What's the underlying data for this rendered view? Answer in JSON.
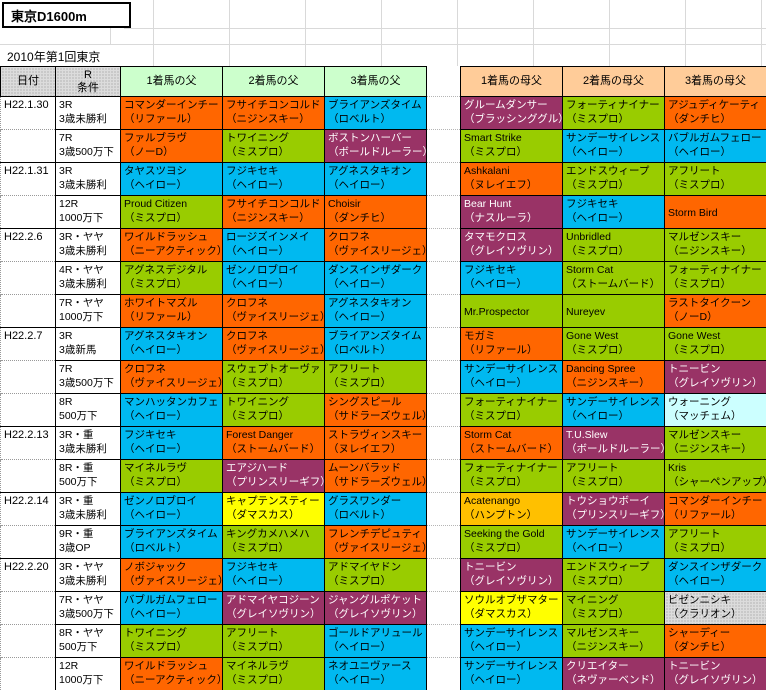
{
  "title": "東京D1600m",
  "subtitle": "2010年第1回東京",
  "columns": {
    "date": "日付",
    "cond_line1": "R",
    "cond_line2": "条件",
    "sire1": "1着馬の父",
    "sire2": "2着馬の父",
    "sire3": "3着馬の父",
    "damsire1": "1着馬の母父",
    "damsire2": "2着馬の母父",
    "damsire3": "3着馬の母父"
  },
  "palette": {
    "orange": "#FF6600",
    "cyan": "#00B9F0",
    "green": "#99CC00",
    "purple": "#993366",
    "yellow": "#FFFF00",
    "amber": "#FFC000",
    "paleblue": "#CCFFFF",
    "gray_pattern": "#DCDCDC",
    "header_green": "#CCFFCC",
    "header_peach": "#FFCC99"
  },
  "rows": [
    {
      "date": "H22.1.30",
      "cond1": "3R",
      "cond2": "3歳未勝利",
      "cells": {
        "f1": {
          "name": "コマンダーインチー",
          "line": "（リファール）",
          "color": "orange"
        },
        "f2": {
          "name": "フサイチコンコルド",
          "line": "（ニジンスキー）",
          "color": "orange"
        },
        "f3": {
          "name": "ブライアンズタイム",
          "line": "（ロベルト）",
          "color": "cyan"
        },
        "m1": {
          "name": "グルームダンサー",
          "line": "（ブラッシンググル）",
          "color": "purple"
        },
        "m2": {
          "name": "フォーティナイナー",
          "line": "（ミスプロ）",
          "color": "green"
        },
        "m3": {
          "name": "アジュディケーティ",
          "line": "（ダンチヒ）",
          "color": "orange"
        }
      }
    },
    {
      "date": "",
      "cond1": "7R",
      "cond2": "3歳500万下",
      "cells": {
        "f1": {
          "name": "ファルブラヴ",
          "line": "（ノーD）",
          "color": "orange"
        },
        "f2": {
          "name": "トワイニング",
          "line": "（ミスプロ）",
          "color": "green"
        },
        "f3": {
          "name": "ボストンハーバー",
          "line": "（ボールドルーラー）",
          "color": "purple"
        },
        "m1": {
          "name": "Smart Strike",
          "line": "（ミスプロ）",
          "color": "green"
        },
        "m2": {
          "name": "サンデーサイレンス",
          "line": "（ヘイロー）",
          "color": "cyan"
        },
        "m3": {
          "name": "バブルガムフェロー",
          "line": "（ヘイロー）",
          "color": "cyan"
        }
      }
    },
    {
      "date": "H22.1.31",
      "cond1": "3R",
      "cond2": "3歳未勝利",
      "cells": {
        "f1": {
          "name": "タヤスツヨシ",
          "line": "（ヘイロー）",
          "color": "cyan"
        },
        "f2": {
          "name": "フジキセキ",
          "line": "（ヘイロー）",
          "color": "cyan"
        },
        "f3": {
          "name": "アグネスタキオン",
          "line": "（ヘイロー）",
          "color": "cyan"
        },
        "m1": {
          "name": "Ashkalani",
          "line": "（ヌレイエフ）",
          "color": "orange"
        },
        "m2": {
          "name": "エンドスウィープ",
          "line": "（ミスプロ）",
          "color": "green"
        },
        "m3": {
          "name": "アフリート",
          "line": "（ミスプロ）",
          "color": "green"
        }
      }
    },
    {
      "date": "",
      "cond1": "12R",
      "cond2": "1000万下",
      "cells": {
        "f1": {
          "name": "Proud Citizen",
          "line": "（ミスプロ）",
          "color": "green"
        },
        "f2": {
          "name": "フサイチコンコルド",
          "line": "（ニジンスキー）",
          "color": "orange"
        },
        "f3": {
          "name": "Choisir",
          "line": "（ダンチヒ）",
          "color": "orange"
        },
        "m1": {
          "name": "Bear Hunt",
          "line": "（ナスルーラ）",
          "color": "purple"
        },
        "m2": {
          "name": "フジキセキ",
          "line": "（ヘイロー）",
          "color": "cyan"
        },
        "m3": {
          "name": "Storm Bird",
          "line": "",
          "color": "orange"
        }
      }
    },
    {
      "date": "H22.2.6",
      "cond1": "3R・ヤヤ",
      "cond2": "3歳未勝利",
      "cells": {
        "f1": {
          "name": "ワイルドラッシュ",
          "line": "（ニーアクティック）",
          "color": "orange"
        },
        "f2": {
          "name": "ロージズインメイ",
          "line": "（ヘイロー）",
          "color": "cyan"
        },
        "f3": {
          "name": "クロフネ",
          "line": "（ヴァイスリージェ）",
          "color": "orange"
        },
        "m1": {
          "name": "タマモクロス",
          "line": "（グレイソヴリン）",
          "color": "purple"
        },
        "m2": {
          "name": "Unbridled",
          "line": "（ミスプロ）",
          "color": "green"
        },
        "m3": {
          "name": "マルゼンスキー",
          "line": "（ニジンスキー）",
          "color": "green"
        }
      }
    },
    {
      "date": "",
      "cond1": "4R・ヤヤ",
      "cond2": "3歳未勝利",
      "cells": {
        "f1": {
          "name": "アグネスデジタル",
          "line": "（ミスプロ）",
          "color": "green"
        },
        "f2": {
          "name": "ゼンノロブロイ",
          "line": "（ヘイロー）",
          "color": "cyan"
        },
        "f3": {
          "name": "ダンスインザダーク",
          "line": "（ヘイロー）",
          "color": "cyan"
        },
        "m1": {
          "name": "フジキセキ",
          "line": "（ヘイロー）",
          "color": "cyan"
        },
        "m2": {
          "name": "Storm Cat",
          "line": "（ストームバード）",
          "color": "green"
        },
        "m3": {
          "name": "フォーティナイナー",
          "line": "（ミスプロ）",
          "color": "green"
        }
      }
    },
    {
      "date": "",
      "cond1": "7R・ヤヤ",
      "cond2": "1000万下",
      "cells": {
        "f1": {
          "name": "ホワイトマズル",
          "line": "（リファール）",
          "color": "orange"
        },
        "f2": {
          "name": "クロフネ",
          "line": "（ヴァイスリージェ）",
          "color": "orange"
        },
        "f3": {
          "name": "アグネスタキオン",
          "line": "（ヘイロー）",
          "color": "cyan"
        },
        "m1": {
          "name": "Mr.Prospector",
          "line": "",
          "color": "green"
        },
        "m2": {
          "name": "Nureyev",
          "line": "",
          "color": "green"
        },
        "m3": {
          "name": "ラストタイクーン",
          "line": "（ノーD）",
          "color": "orange"
        }
      }
    },
    {
      "date": "H22.2.7",
      "cond1": "3R",
      "cond2": "3歳新馬",
      "cells": {
        "f1": {
          "name": "アグネスタキオン",
          "line": "（ヘイロー）",
          "color": "cyan"
        },
        "f2": {
          "name": "クロフネ",
          "line": "（ヴァイスリージェ）",
          "color": "orange"
        },
        "f3": {
          "name": "ブライアンズタイム",
          "line": "（ロベルト）",
          "color": "cyan"
        },
        "m1": {
          "name": "モガミ",
          "line": "（リファール）",
          "color": "orange"
        },
        "m2": {
          "name": "Gone West",
          "line": "（ミスプロ）",
          "color": "green"
        },
        "m3": {
          "name": "Gone West",
          "line": "（ミスプロ）",
          "color": "green"
        }
      }
    },
    {
      "date": "",
      "cond1": "7R",
      "cond2": "3歳500万下",
      "cells": {
        "f1": {
          "name": "クロフネ",
          "line": "（ヴァイスリージェ）",
          "color": "orange"
        },
        "f2": {
          "name": "スウェプトオーヴァ",
          "line": "（ミスプロ）",
          "color": "green"
        },
        "f3": {
          "name": "アフリート",
          "line": "（ミスプロ）",
          "color": "green"
        },
        "m1": {
          "name": "サンデーサイレンス",
          "line": "（ヘイロー）",
          "color": "cyan"
        },
        "m2": {
          "name": "Dancing Spree",
          "line": "（ニジンスキー）",
          "color": "orange"
        },
        "m3": {
          "name": "トニービン",
          "line": "（グレイソヴリン）",
          "color": "purple"
        }
      }
    },
    {
      "date": "",
      "cond1": "8R",
      "cond2": "500万下",
      "cells": {
        "f1": {
          "name": "マンハッタンカフェ",
          "line": "（ヘイロー）",
          "color": "cyan"
        },
        "f2": {
          "name": "トワイニング",
          "line": "（ミスプロ）",
          "color": "green"
        },
        "f3": {
          "name": "シングスピール",
          "line": "（サドラーズウェル）",
          "color": "orange"
        },
        "m1": {
          "name": "フォーティナイナー",
          "line": "（ミスプロ）",
          "color": "green"
        },
        "m2": {
          "name": "サンデーサイレンス",
          "line": "（ヘイロー）",
          "color": "cyan"
        },
        "m3": {
          "name": "ウォーニング",
          "line": "（マッチェム）",
          "color": "paleblue"
        }
      }
    },
    {
      "date": "H22.2.13",
      "cond1": "3R・重",
      "cond2": "3歳未勝利",
      "cells": {
        "f1": {
          "name": "フジキセキ",
          "line": "（ヘイロー）",
          "color": "cyan"
        },
        "f2": {
          "name": "Forest Danger",
          "line": "（ストームバード）",
          "color": "orange"
        },
        "f3": {
          "name": "ストラヴィンスキー",
          "line": "（ヌレイエフ）",
          "color": "orange"
        },
        "m1": {
          "name": "Storm Cat",
          "line": "（ストームバード）",
          "color": "orange"
        },
        "m2": {
          "name": "T.U.Slew",
          "line": "（ボールドルーラー）",
          "color": "purple"
        },
        "m3": {
          "name": "マルゼンスキー",
          "line": "（ニジンスキー）",
          "color": "green"
        }
      }
    },
    {
      "date": "",
      "cond1": "8R・重",
      "cond2": "500万下",
      "cells": {
        "f1": {
          "name": "マイネルラヴ",
          "line": "（ミスプロ）",
          "color": "green"
        },
        "f2": {
          "name": "エアジハード",
          "line": "（プリンスリーギフ）",
          "color": "purple"
        },
        "f3": {
          "name": "ムーンバラッド",
          "line": "（サドラーズウェル）",
          "color": "orange"
        },
        "m1": {
          "name": "フォーティナイナー",
          "line": "（ミスプロ）",
          "color": "green"
        },
        "m2": {
          "name": "アフリート",
          "line": "（ミスプロ）",
          "color": "green"
        },
        "m3": {
          "name": "Kris",
          "line": "（シャーペンアップ）",
          "color": "green"
        }
      }
    },
    {
      "date": "H22.2.14",
      "cond1": "3R・重",
      "cond2": "3歳未勝利",
      "cells": {
        "f1": {
          "name": "ゼンノロブロイ",
          "line": "（ヘイロー）",
          "color": "cyan"
        },
        "f2": {
          "name": "キャプテンスティー",
          "line": "（ダマスカス）",
          "color": "yellow"
        },
        "f3": {
          "name": "グラスワンダー",
          "line": "（ロベルト）",
          "color": "cyan"
        },
        "m1": {
          "name": "Acatenango",
          "line": "（ハンプトン）",
          "color": "amber"
        },
        "m2": {
          "name": "トウショウボーイ",
          "line": "（プリンスリーギフ）",
          "color": "purple"
        },
        "m3": {
          "name": "コマンダーインチー",
          "line": "（リファール）",
          "color": "orange"
        }
      }
    },
    {
      "date": "",
      "cond1": "9R・重",
      "cond2": "3歳OP",
      "cells": {
        "f1": {
          "name": "ブライアンズタイム",
          "line": "（ロベルト）",
          "color": "cyan"
        },
        "f2": {
          "name": "キングカメハメハ",
          "line": "（ミスプロ）",
          "color": "green"
        },
        "f3": {
          "name": "フレンチデピュティ",
          "line": "（ヴァイスリージェ）",
          "color": "orange"
        },
        "m1": {
          "name": "Seeking the Gold",
          "line": "（ミスプロ）",
          "color": "green"
        },
        "m2": {
          "name": "サンデーサイレンス",
          "line": "（ヘイロー）",
          "color": "cyan"
        },
        "m3": {
          "name": "アフリート",
          "line": "（ミスプロ）",
          "color": "green"
        }
      }
    },
    {
      "date": "H22.2.20",
      "cond1": "3R・ヤヤ",
      "cond2": "3歳未勝利",
      "cells": {
        "f1": {
          "name": "ノボジャック",
          "line": "（ヴァイスリージェ）",
          "color": "orange"
        },
        "f2": {
          "name": "フジキセキ",
          "line": "（ヘイロー）",
          "color": "cyan"
        },
        "f3": {
          "name": "アドマイヤドン",
          "line": "（ミスプロ）",
          "color": "green"
        },
        "m1": {
          "name": "トニービン",
          "line": "（グレイソヴリン）",
          "color": "purple"
        },
        "m2": {
          "name": "エンドスウィープ",
          "line": "（ミスプロ）",
          "color": "green"
        },
        "m3": {
          "name": "ダンスインザダーク",
          "line": "（ヘイロー）",
          "color": "cyan"
        }
      }
    },
    {
      "date": "",
      "cond1": "7R・ヤヤ",
      "cond2": "3歳500万下",
      "cells": {
        "f1": {
          "name": "バブルガムフェロー",
          "line": "（ヘイロー）",
          "color": "cyan"
        },
        "f2": {
          "name": "アドマイヤコジーン",
          "line": "（グレイソヴリン）",
          "color": "purple"
        },
        "f3": {
          "name": "ジャングルポケット",
          "line": "（グレイソヴリン）",
          "color": "purple"
        },
        "m1": {
          "name": "ソウルオブザマター",
          "line": "（ダマスカス）",
          "color": "yellow"
        },
        "m2": {
          "name": "マイニング",
          "line": "（ミスプロ）",
          "color": "green"
        },
        "m3": {
          "name": "ビゼンニシキ",
          "line": "（クラリオン）",
          "color": "gray"
        }
      }
    },
    {
      "date": "",
      "cond1": "8R・ヤヤ",
      "cond2": "500万下",
      "cells": {
        "f1": {
          "name": "トワイニング",
          "line": "（ミスプロ）",
          "color": "green"
        },
        "f2": {
          "name": "アフリート",
          "line": "（ミスプロ）",
          "color": "green"
        },
        "f3": {
          "name": "ゴールドアリュール",
          "line": "（ヘイロー）",
          "color": "cyan"
        },
        "m1": {
          "name": "サンデーサイレンス",
          "line": "（ヘイロー）",
          "color": "cyan"
        },
        "m2": {
          "name": "マルゼンスキー",
          "line": "（ニジンスキー）",
          "color": "green"
        },
        "m3": {
          "name": "シャーディー",
          "line": "（ダンチヒ）",
          "color": "orange"
        }
      }
    },
    {
      "date": "",
      "cond1": "12R",
      "cond2": "1000万下",
      "cells": {
        "f1": {
          "name": "ワイルドラッシュ",
          "line": "（ニーアクティック）",
          "color": "orange"
        },
        "f2": {
          "name": "マイネルラヴ",
          "line": "（ミスプロ）",
          "color": "green"
        },
        "f3": {
          "name": "ネオユニヴァース",
          "line": "（ヘイロー）",
          "color": "cyan"
        },
        "m1": {
          "name": "サンデーサイレンス",
          "line": "（ヘイロー）",
          "color": "cyan"
        },
        "m2": {
          "name": "クリエイター",
          "line": "（ネヴァーベンド）",
          "color": "purple"
        },
        "m3": {
          "name": "トニービン",
          "line": "（グレイソヴリン）",
          "color": "purple"
        }
      }
    }
  ]
}
